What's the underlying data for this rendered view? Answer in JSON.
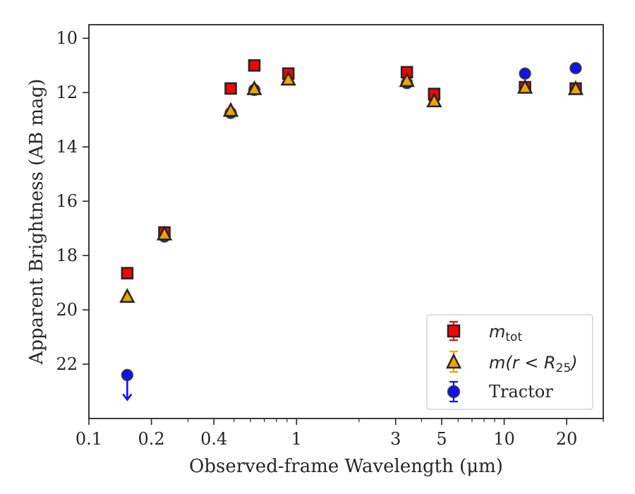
{
  "chart_data": {
    "type": "scatter",
    "xlabel": "Observed-frame Wavelength (μm)",
    "ylabel": "Apparent Brightness (AB mag)",
    "x_scale": "log",
    "xlim": [
      0.1,
      30
    ],
    "ylim": [
      24.0,
      9.5
    ],
    "y_inverted": true,
    "x_ticks": [
      {
        "value": 0.1,
        "label": "0.1"
      },
      {
        "value": 0.2,
        "label": "0.2"
      },
      {
        "value": 0.4,
        "label": "0.4"
      },
      {
        "value": 1,
        "label": "1"
      },
      {
        "value": 3,
        "label": "3"
      },
      {
        "value": 5,
        "label": "5"
      },
      {
        "value": 10,
        "label": "10"
      },
      {
        "value": 20,
        "label": "20"
      }
    ],
    "x_minor_ticks": [
      0.3,
      0.5,
      0.6,
      0.7,
      0.8,
      0.9,
      2,
      4,
      6,
      7,
      8,
      9,
      30
    ],
    "y_ticks": [
      {
        "value": 10,
        "label": "10"
      },
      {
        "value": 12,
        "label": "12"
      },
      {
        "value": 14,
        "label": "14"
      },
      {
        "value": 16,
        "label": "16"
      },
      {
        "value": 18,
        "label": "18"
      },
      {
        "value": 20,
        "label": "20"
      },
      {
        "value": 22,
        "label": "22"
      }
    ],
    "legend_position": "lower-right",
    "series": [
      {
        "name": "m_tot",
        "marker": "square",
        "color": "#ff0000",
        "points": [
          {
            "x": 0.153,
            "y": 18.65
          },
          {
            "x": 0.231,
            "y": 17.15
          },
          {
            "x": 0.482,
            "y": 11.85
          },
          {
            "x": 0.626,
            "y": 11.0
          },
          {
            "x": 0.913,
            "y": 11.3
          },
          {
            "x": 3.4,
            "y": 11.25
          },
          {
            "x": 4.6,
            "y": 12.05
          },
          {
            "x": 12.6,
            "y": 11.8
          },
          {
            "x": 22.1,
            "y": 11.85
          }
        ]
      },
      {
        "name": "m(r<R25)",
        "marker": "triangle",
        "color": "#f5a300",
        "points": [
          {
            "x": 0.153,
            "y": 19.5
          },
          {
            "x": 0.231,
            "y": 17.2
          },
          {
            "x": 0.482,
            "y": 12.65
          },
          {
            "x": 0.626,
            "y": 11.85
          },
          {
            "x": 0.913,
            "y": 11.5
          },
          {
            "x": 3.4,
            "y": 11.55
          },
          {
            "x": 4.6,
            "y": 12.3
          },
          {
            "x": 12.6,
            "y": 11.8
          },
          {
            "x": 22.1,
            "y": 11.85
          }
        ]
      },
      {
        "name": "Tractor",
        "marker": "circle",
        "color": "#1010ff",
        "points": [
          {
            "x": 0.153,
            "y": 22.4,
            "upper_limit": true
          },
          {
            "x": 0.231,
            "y": 17.3
          },
          {
            "x": 0.482,
            "y": 12.75
          },
          {
            "x": 0.626,
            "y": 11.9
          },
          {
            "x": 0.913,
            "y": 11.35
          },
          {
            "x": 3.4,
            "y": 11.65
          },
          {
            "x": 4.6,
            "y": 12.2
          },
          {
            "x": 12.6,
            "y": 11.3
          },
          {
            "x": 22.1,
            "y": 11.1
          }
        ]
      }
    ]
  }
}
